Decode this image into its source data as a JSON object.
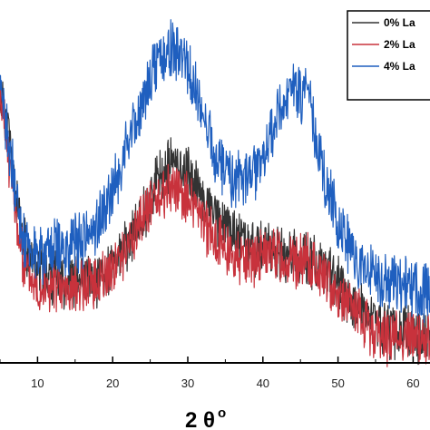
{
  "chart_data": {
    "type": "line",
    "title": "",
    "xlabel_main": "2 θ",
    "xlabel_sup": "o",
    "ylabel": "",
    "xlim": [
      5,
      64
    ],
    "x_ticks": [
      10,
      20,
      30,
      40,
      50,
      60
    ],
    "x_tick_labels": [
      "10",
      "20",
      "30",
      "40",
      "50",
      "60"
    ],
    "legend_position": "top-right",
    "legend_entries": [
      "0% La",
      "2% La",
      "4% La"
    ],
    "series": [
      {
        "name": "0% La",
        "color": "#333333",
        "noise": 0.055,
        "seed": 11,
        "x": [
          5,
          6,
          7,
          8,
          9,
          10,
          12,
          14,
          16,
          18,
          20,
          22,
          24,
          26,
          28,
          30,
          32,
          34,
          36,
          38,
          40,
          42,
          44,
          46,
          48,
          50,
          52,
          54,
          56,
          58,
          60,
          62,
          64
        ],
        "y": [
          0.62,
          0.55,
          0.4,
          0.28,
          0.24,
          0.22,
          0.2,
          0.19,
          0.19,
          0.19,
          0.22,
          0.27,
          0.34,
          0.42,
          0.46,
          0.44,
          0.38,
          0.33,
          0.3,
          0.27,
          0.26,
          0.26,
          0.24,
          0.24,
          0.22,
          0.18,
          0.14,
          0.1,
          0.08,
          0.07,
          0.07,
          0.06,
          0.06
        ]
      },
      {
        "name": "2% La",
        "color": "#c8323c",
        "noise": 0.055,
        "seed": 23,
        "x": [
          5,
          6,
          7,
          8,
          9,
          10,
          12,
          14,
          16,
          18,
          20,
          22,
          24,
          26,
          28,
          30,
          32,
          34,
          36,
          38,
          40,
          42,
          44,
          46,
          48,
          50,
          52,
          54,
          56,
          58,
          60,
          62,
          64
        ],
        "y": [
          0.6,
          0.5,
          0.35,
          0.24,
          0.2,
          0.18,
          0.17,
          0.17,
          0.18,
          0.19,
          0.22,
          0.27,
          0.33,
          0.38,
          0.4,
          0.38,
          0.32,
          0.28,
          0.25,
          0.24,
          0.25,
          0.25,
          0.23,
          0.23,
          0.2,
          0.16,
          0.12,
          0.08,
          0.06,
          0.06,
          0.06,
          0.05,
          0.04
        ]
      },
      {
        "name": "4% La",
        "color": "#1f5fbf",
        "noise": 0.06,
        "seed": 37,
        "x": [
          5,
          6,
          7,
          8,
          9,
          10,
          12,
          14,
          16,
          18,
          20,
          22,
          24,
          26,
          28,
          30,
          32,
          34,
          36,
          38,
          40,
          42,
          44,
          46,
          48,
          50,
          52,
          54,
          56,
          58,
          60,
          62,
          64
        ],
        "y": [
          0.6,
          0.52,
          0.4,
          0.3,
          0.26,
          0.25,
          0.26,
          0.27,
          0.28,
          0.32,
          0.4,
          0.5,
          0.6,
          0.7,
          0.72,
          0.68,
          0.56,
          0.47,
          0.42,
          0.42,
          0.46,
          0.56,
          0.63,
          0.6,
          0.44,
          0.32,
          0.24,
          0.2,
          0.19,
          0.18,
          0.17,
          0.16,
          0.14
        ]
      }
    ]
  }
}
